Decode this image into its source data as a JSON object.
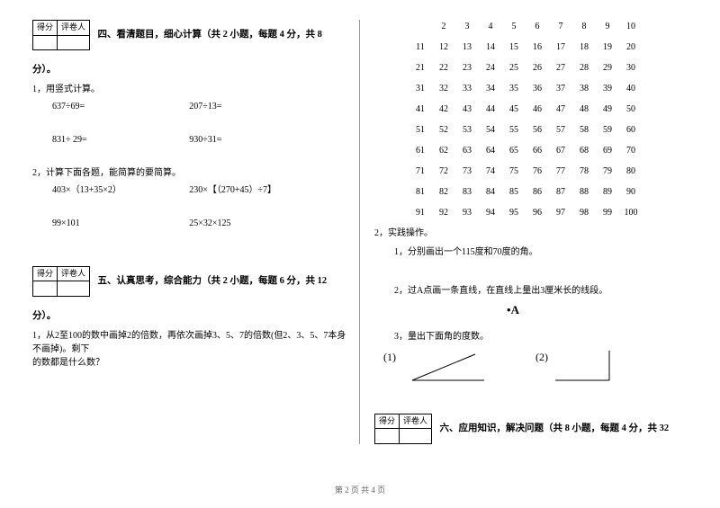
{
  "left": {
    "scoreHead1": "得分",
    "scoreHead2": "评卷人",
    "sec4": {
      "title1": "四、看清题目，细心计算（共 2 小题，每题 4 分，共 8",
      "title2": "分）。",
      "q1": "1，用竖式计算。",
      "c1a": "637÷69=",
      "c1b": "207÷13=",
      "c2a": "831÷ 29=",
      "c2b": "930÷31=",
      "q2": "2，计算下面各题，能简算的要简算。",
      "c3a": "403×（13+35×2）",
      "c3b": "230×【（270+45）÷7】",
      "c4a": "99×101",
      "c4b": "25×32×125"
    },
    "sec5": {
      "title1": "五、认真思考，综合能力（共 2 小题，每题 6 分，共 12",
      "title2": "分）。",
      "q1a": "1，从2至100的数中画掉2的倍数，再依次画掉3、5、7的倍数(但2、3、5、7本身不画掉)。剩下",
      "q1b": "的数都是什么数？"
    }
  },
  "right": {
    "grid": [
      [
        "2",
        "3",
        "4",
        "5",
        "6",
        "7",
        "8",
        "9",
        "10"
      ],
      [
        "11",
        "12",
        "13",
        "14",
        "15",
        "16",
        "17",
        "18",
        "19",
        "20"
      ],
      [
        "21",
        "22",
        "23",
        "24",
        "25",
        "26",
        "27",
        "28",
        "29",
        "30"
      ],
      [
        "31",
        "32",
        "33",
        "34",
        "35",
        "36",
        "37",
        "38",
        "39",
        "40"
      ],
      [
        "41",
        "42",
        "43",
        "44",
        "45",
        "46",
        "47",
        "48",
        "49",
        "50"
      ],
      [
        "51",
        "52",
        "53",
        "54",
        "55",
        "56",
        "57",
        "58",
        "59",
        "60"
      ],
      [
        "61",
        "62",
        "63",
        "64",
        "65",
        "66",
        "67",
        "68",
        "69",
        "70"
      ],
      [
        "71",
        "72",
        "73",
        "74",
        "75",
        "76",
        "77",
        "78",
        "79",
        "80"
      ],
      [
        "81",
        "82",
        "83",
        "84",
        "85",
        "86",
        "87",
        "88",
        "89",
        "90"
      ],
      [
        "91",
        "92",
        "93",
        "94",
        "95",
        "96",
        "97",
        "98",
        "99",
        "100"
      ]
    ],
    "q2": "2，实践操作。",
    "q2_1": "1，分别画出一个115度和70度的角。",
    "q2_2": "2，过A点画一条直线，在直线上量出3厘米长的线段。",
    "pointA": "•A",
    "q2_3": "3，量出下面角的度数。",
    "lbl1": "(1)",
    "lbl2": "(2)",
    "sec6": {
      "scoreHead1": "得分",
      "scoreHead2": "评卷人",
      "title1": "六、应用知识，解决问题（共 8 小题，每题 4 分，共 32"
    }
  },
  "footer": "第 2 页 共 4 页"
}
